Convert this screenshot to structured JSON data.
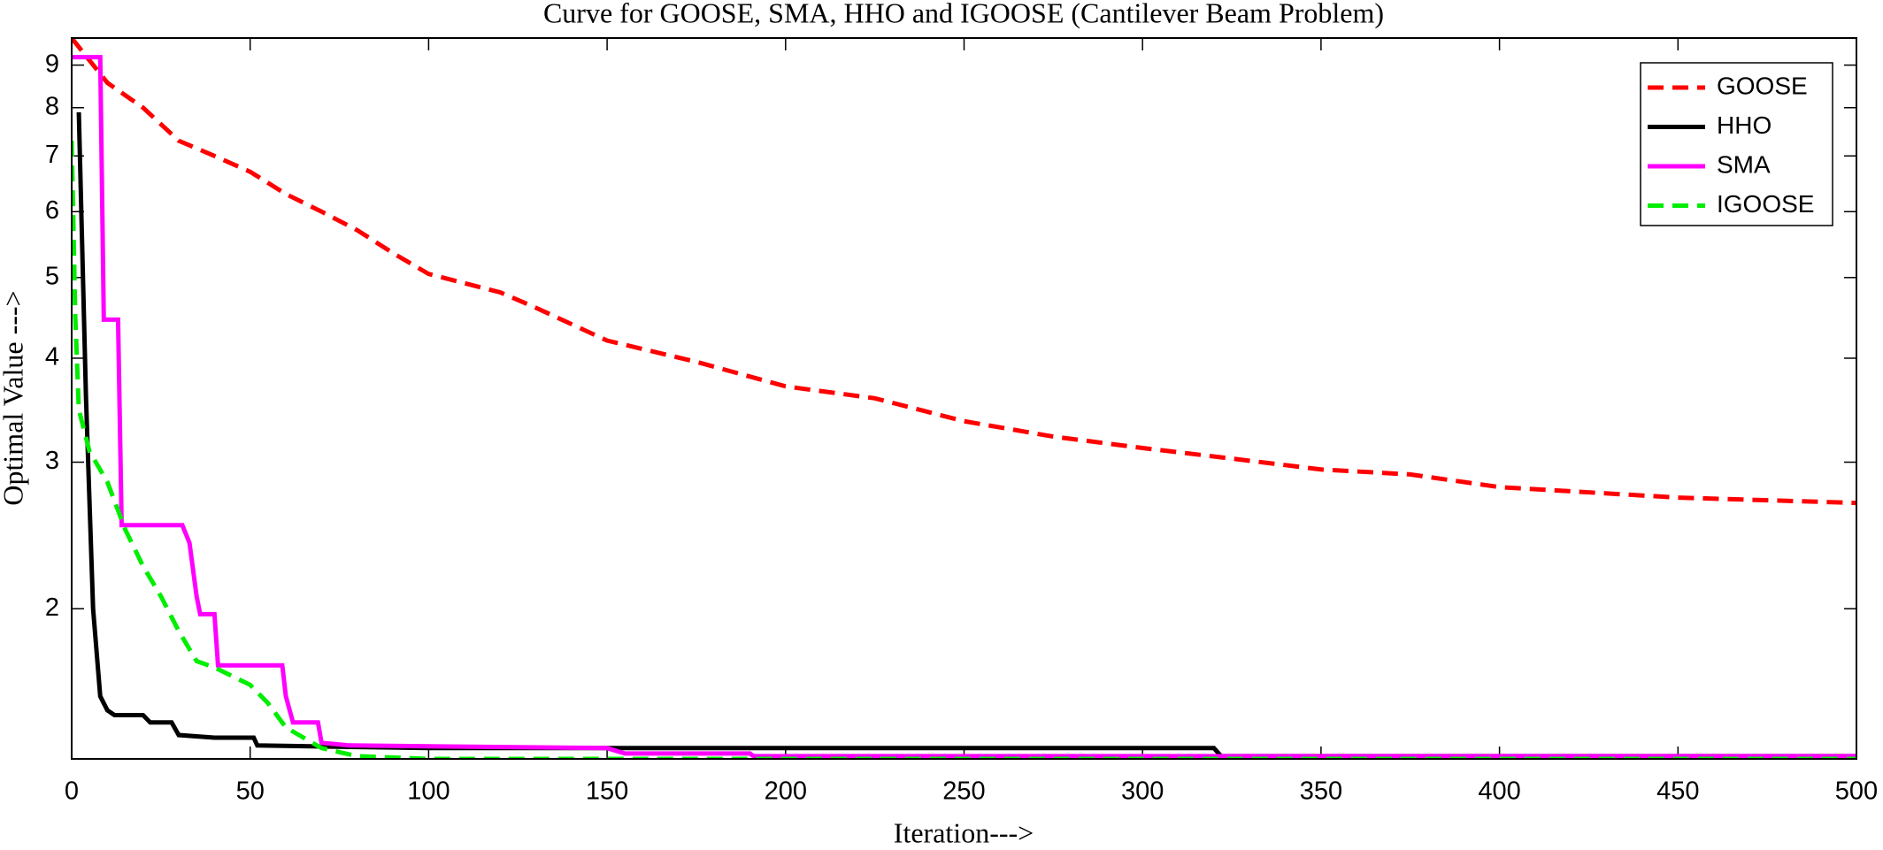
{
  "chart_data": {
    "type": "line",
    "title": "Curve for GOOSE, SMA, HHO and IGOOSE (Cantilever Beam Problem)",
    "x_label": "Iteration--->",
    "y_label": "Optimal Value --->",
    "xlim": [
      0,
      500
    ],
    "xticks": [
      0,
      50,
      100,
      150,
      200,
      250,
      300,
      350,
      400,
      450,
      500
    ],
    "ylim": [
      1.32,
      9.7
    ],
    "yticks": [
      2,
      3,
      4,
      5,
      6,
      7,
      8,
      9
    ],
    "yscale": "log",
    "grid": false,
    "legend_position": "upper right",
    "series": [
      {
        "name": "GOOSE",
        "color": "#ff0000",
        "linestyle": "dashed",
        "x": [
          0,
          10,
          20,
          30,
          40,
          50,
          60,
          70,
          80,
          90,
          100,
          120,
          130,
          150,
          175,
          200,
          225,
          250,
          275,
          300,
          325,
          350,
          375,
          400,
          450,
          500
        ],
        "values": [
          9.7,
          8.57,
          8.0,
          7.3,
          7.0,
          6.7,
          6.3,
          6.0,
          5.7,
          5.35,
          5.05,
          4.8,
          4.6,
          4.2,
          3.96,
          3.7,
          3.58,
          3.36,
          3.22,
          3.12,
          3.03,
          2.94,
          2.9,
          2.8,
          2.72,
          2.68
        ]
      },
      {
        "name": "HHO",
        "color": "#000000",
        "linestyle": "solid",
        "x": [
          2,
          4,
          6,
          8,
          10,
          12,
          20,
          22,
          28,
          30,
          40,
          51,
          52,
          100,
          320,
          322,
          500
        ],
        "values": [
          7.9,
          3.6,
          2.0,
          1.57,
          1.51,
          1.49,
          1.49,
          1.46,
          1.46,
          1.41,
          1.4,
          1.4,
          1.37,
          1.36,
          1.36,
          1.33,
          1.33
        ]
      },
      {
        "name": "SMA",
        "color": "#ff00ff",
        "linestyle": "solid",
        "x": [
          0,
          8,
          9,
          13,
          14,
          31,
          33,
          35,
          36,
          40,
          41,
          59,
          60,
          62,
          69,
          70,
          78,
          150,
          155,
          190,
          191,
          500
        ],
        "values": [
          9.2,
          9.2,
          4.45,
          4.45,
          2.52,
          2.52,
          2.4,
          2.07,
          1.97,
          1.97,
          1.71,
          1.71,
          1.57,
          1.46,
          1.46,
          1.38,
          1.37,
          1.36,
          1.34,
          1.34,
          1.33,
          1.33
        ]
      },
      {
        "name": "IGOOSE",
        "color": "#00ee00",
        "linestyle": "dashed",
        "x": [
          0,
          1,
          2,
          5,
          10,
          15,
          20,
          25,
          30,
          35,
          40,
          50,
          55,
          60,
          70,
          80,
          100,
          500
        ],
        "values": [
          7.3,
          4.5,
          3.47,
          3.09,
          2.84,
          2.49,
          2.25,
          2.07,
          1.88,
          1.73,
          1.7,
          1.62,
          1.54,
          1.44,
          1.36,
          1.33,
          1.32,
          1.32
        ]
      }
    ]
  }
}
